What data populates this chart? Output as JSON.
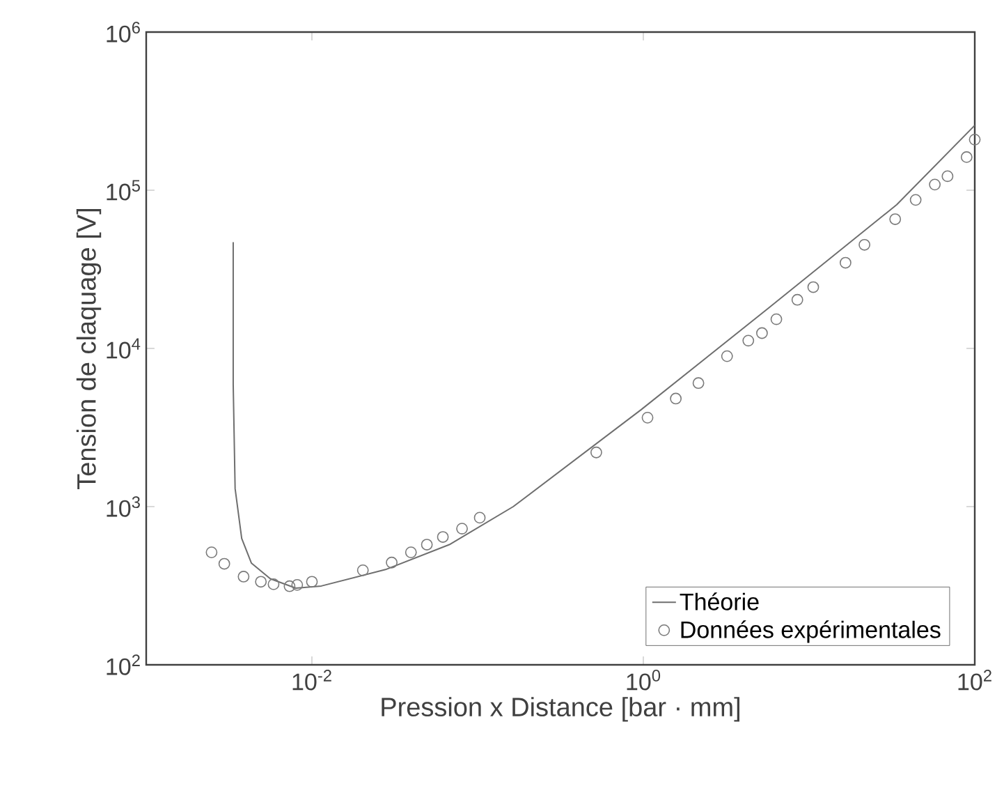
{
  "chart_data": {
    "type": "line",
    "xlabel": "Pression x Distance [bar · mm]",
    "ylabel": "Tension de claquage [V]",
    "log": "xy",
    "xlim": [
      0.001,
      100
    ],
    "ylim": [
      100,
      1000000
    ],
    "xticks": [
      {
        "value": 0.01,
        "label": "10$^{-2}$"
      },
      {
        "value": 1,
        "label": "10$^{0}$"
      },
      {
        "value": 100,
        "label": "10$^{2}$"
      }
    ],
    "yticks": [
      {
        "value": 100,
        "label": "10$^{2}$"
      },
      {
        "value": 1000,
        "label": "10$^{3}$"
      },
      {
        "value": 10000,
        "label": "10$^{4}$"
      },
      {
        "value": 100000,
        "label": "10$^{5}$"
      },
      {
        "value": 1000000,
        "label": "10$^{6}$"
      }
    ],
    "legend": "bottom right",
    "series": [
      {
        "name": "Théorie",
        "color": "#6e6e6e",
        "line_style": "solid",
        "marker": "none",
        "x": [
          0.00335,
          0.00335,
          0.00344,
          0.00377,
          0.00431,
          0.00561,
          0.008,
          0.0114,
          0.0278,
          0.0675,
          0.164,
          0.97,
          5.7,
          33.8,
          100
        ],
        "values": [
          47000,
          5900,
          1300,
          630,
          440,
          350,
          305,
          315,
          400,
          575,
          1000,
          4100,
          18000,
          81000,
          257000
        ]
      },
      {
        "name": "Données expérimentales",
        "type": "scatter",
        "color": "#7a7a7a",
        "marker": "circle",
        "x": [
          0.00248,
          0.00296,
          0.00387,
          0.00492,
          0.00587,
          0.00733,
          0.00815,
          0.01,
          0.0203,
          0.0303,
          0.0396,
          0.0494,
          0.0617,
          0.0805,
          0.103,
          0.52,
          1.06,
          1.57,
          2.15,
          3.2,
          4.3,
          5.2,
          6.35,
          8.5,
          10.6,
          16.6,
          21.6,
          33.1,
          44,
          57.4,
          68.5,
          89.3,
          100
        ],
        "values": [
          514,
          435,
          361,
          335,
          323,
          314,
          320,
          335,
          396,
          443,
          514,
          575,
          643,
          726,
          851,
          2200,
          3650,
          4820,
          6040,
          8930,
          11200,
          12500,
          15300,
          20300,
          24400,
          34800,
          45200,
          65600,
          86900,
          108600,
          122700,
          162000,
          209000
        ]
      }
    ]
  }
}
